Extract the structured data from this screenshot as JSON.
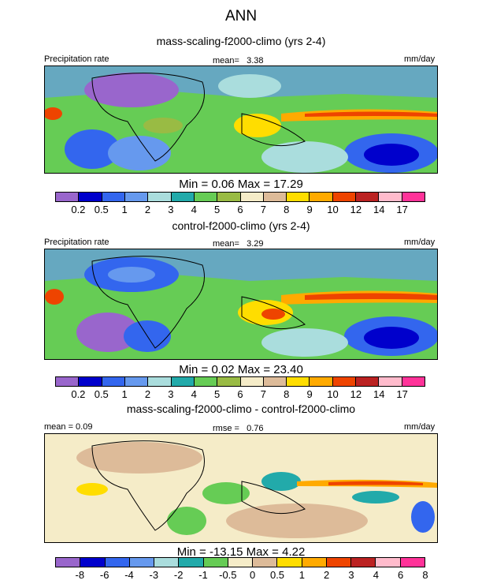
{
  "header": {
    "title": "ANN"
  },
  "panels": [
    {
      "id": "test",
      "subtitle": "mass-scaling-f2000-climo (yrs 2-4)",
      "left_label": "Precipitation rate",
      "stat_label": "mean=",
      "stat_value": "3.38",
      "units": "mm/day",
      "minmax": "Min =   0.06 Max =  17.29",
      "colors": [
        "#9966cc",
        "#0000cc",
        "#3366ee",
        "#6699ee",
        "#aadddd",
        "#22aaaa",
        "#66cc55",
        "#99bb44",
        "#f5ecc8",
        "#ddbb99",
        "#ffdd00",
        "#ffaa00",
        "#ee4400",
        "#bb2222",
        "#ffbbcc",
        "#ff3399"
      ],
      "ticks": [
        "0.2",
        "0.5",
        "1",
        "2",
        "3",
        "4",
        "5",
        "6",
        "7",
        "8",
        "9",
        "10",
        "12",
        "14",
        "17"
      ]
    },
    {
      "id": "ref",
      "subtitle": "control-f2000-climo (yrs 2-4)",
      "left_label": "Precipitation rate",
      "stat_label": "mean=",
      "stat_value": "3.29",
      "units": "mm/day",
      "minmax": "Min =   0.02 Max =  23.40",
      "colors": [
        "#9966cc",
        "#0000cc",
        "#3366ee",
        "#6699ee",
        "#aadddd",
        "#22aaaa",
        "#66cc55",
        "#99bb44",
        "#f5ecc8",
        "#ddbb99",
        "#ffdd00",
        "#ffaa00",
        "#ee4400",
        "#bb2222",
        "#ffbbcc",
        "#ff3399"
      ],
      "ticks": [
        "0.2",
        "0.5",
        "1",
        "2",
        "3",
        "4",
        "5",
        "6",
        "7",
        "8",
        "9",
        "10",
        "12",
        "14",
        "17"
      ]
    },
    {
      "id": "diff",
      "subtitle": "mass-scaling-f2000-climo - control-f2000-climo",
      "left_label": "mean =   0.09",
      "stat_label": "rmse =",
      "stat_value": "0.76",
      "units": "mm/day",
      "minmax": "Min = -13.15 Max =   4.22",
      "colors": [
        "#9966cc",
        "#0000cc",
        "#3366ee",
        "#6699ee",
        "#aadddd",
        "#22aaaa",
        "#66cc55",
        "#f5ecc8",
        "#ddbb99",
        "#ffdd00",
        "#ffaa00",
        "#ee4400",
        "#bb2222",
        "#ffbbcc",
        "#ff3399"
      ],
      "ticks": [
        "-8",
        "-6",
        "-4",
        "-3",
        "-2",
        "-1",
        "-0.5",
        "0",
        "0.5",
        "1",
        "2",
        "3",
        "4",
        "6",
        "8"
      ]
    }
  ]
}
